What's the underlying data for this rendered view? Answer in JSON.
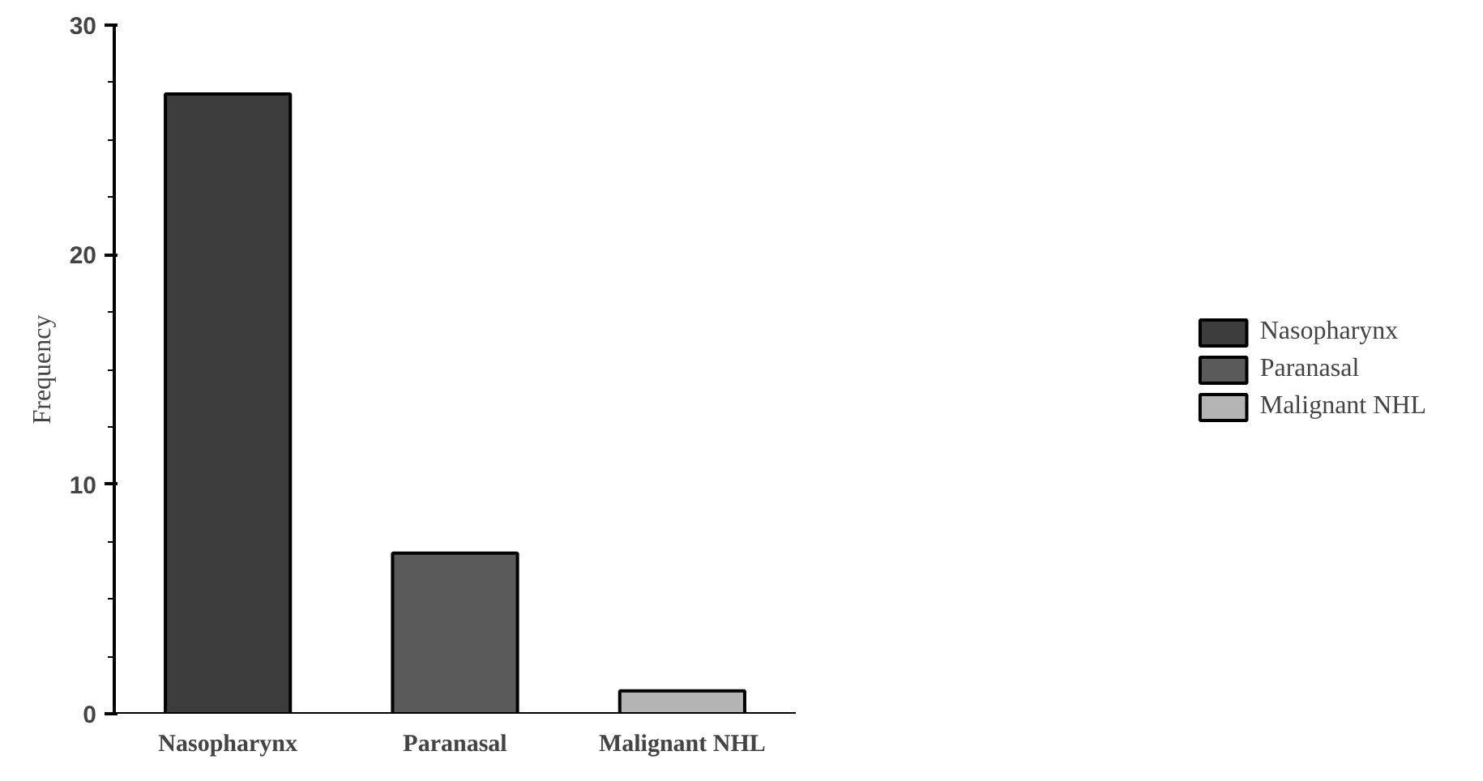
{
  "chart_data": {
    "type": "bar",
    "ylabel": "Frequency",
    "categories": [
      "Nasopharynx",
      "Paranasal",
      "Malignant NHL"
    ],
    "series": [
      {
        "name": "Nasopharynx",
        "color": "#3c3c3c",
        "values": [
          27,
          null,
          null
        ]
      },
      {
        "name": "Paranasal",
        "color": "#5a5a5a",
        "values": [
          null,
          7,
          null
        ]
      },
      {
        "name": "Malignant NHL",
        "color": "#b4b4b4",
        "values": [
          null,
          null,
          1
        ]
      }
    ],
    "ylim": [
      0,
      30
    ],
    "yticks": [
      0,
      10,
      20,
      30
    ],
    "grid": false,
    "legend": "right"
  }
}
